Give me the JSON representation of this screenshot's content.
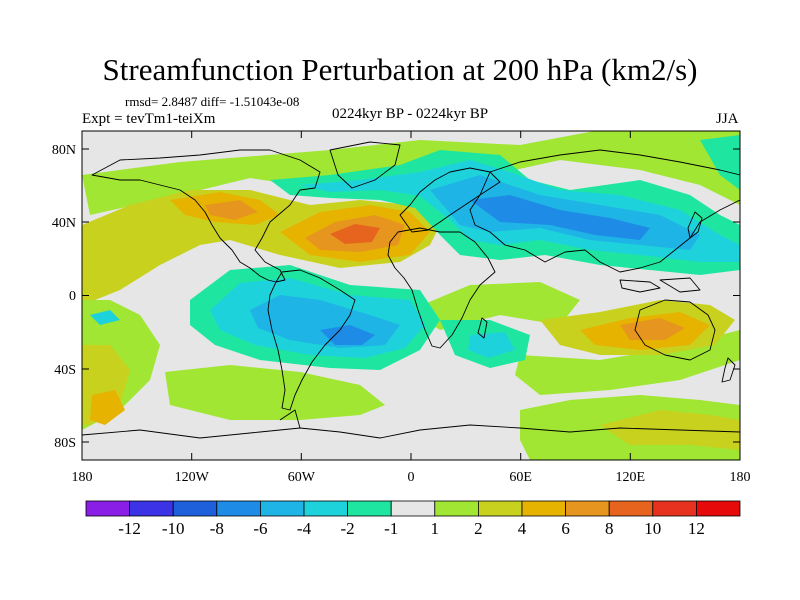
{
  "title": "Streamfunction Perturbation at 200 hPa (km2/s)",
  "stats_line": "rmsd= 2.8487 diff= -1.51043e-08",
  "experiment": "Expt = tevTm1-teiXm",
  "period": "0224kyr BP - 0224kyr BP",
  "season": "JJA",
  "map": {
    "projection": "cylindrical-equidistant",
    "lon_range": [
      -180,
      180
    ],
    "lat_range": [
      -90,
      90
    ],
    "background_color": "#e6e6e6",
    "coastline_color": "#000000",
    "x_ticks": [
      "180",
      "120W",
      "60W",
      "0",
      "60E",
      "120E",
      "180"
    ],
    "y_ticks": [
      "80N",
      "40N",
      "0",
      "40S",
      "80S"
    ]
  },
  "colorbar": {
    "labels": [
      "-12",
      "-10",
      "-8",
      "-6",
      "-4",
      "-2",
      "-1",
      "1",
      "2",
      "4",
      "6",
      "8",
      "10",
      "12"
    ],
    "colors": [
      "#8a1ee6",
      "#3c32e6",
      "#1e5fdc",
      "#1e8ce6",
      "#1eb4e6",
      "#1ed2dc",
      "#1ee6a0",
      "#e6e6e6",
      "#a0e632",
      "#c8d21e",
      "#e6b400",
      "#e6961e",
      "#e6641e",
      "#e6321e",
      "#e60a0a"
    ]
  }
}
